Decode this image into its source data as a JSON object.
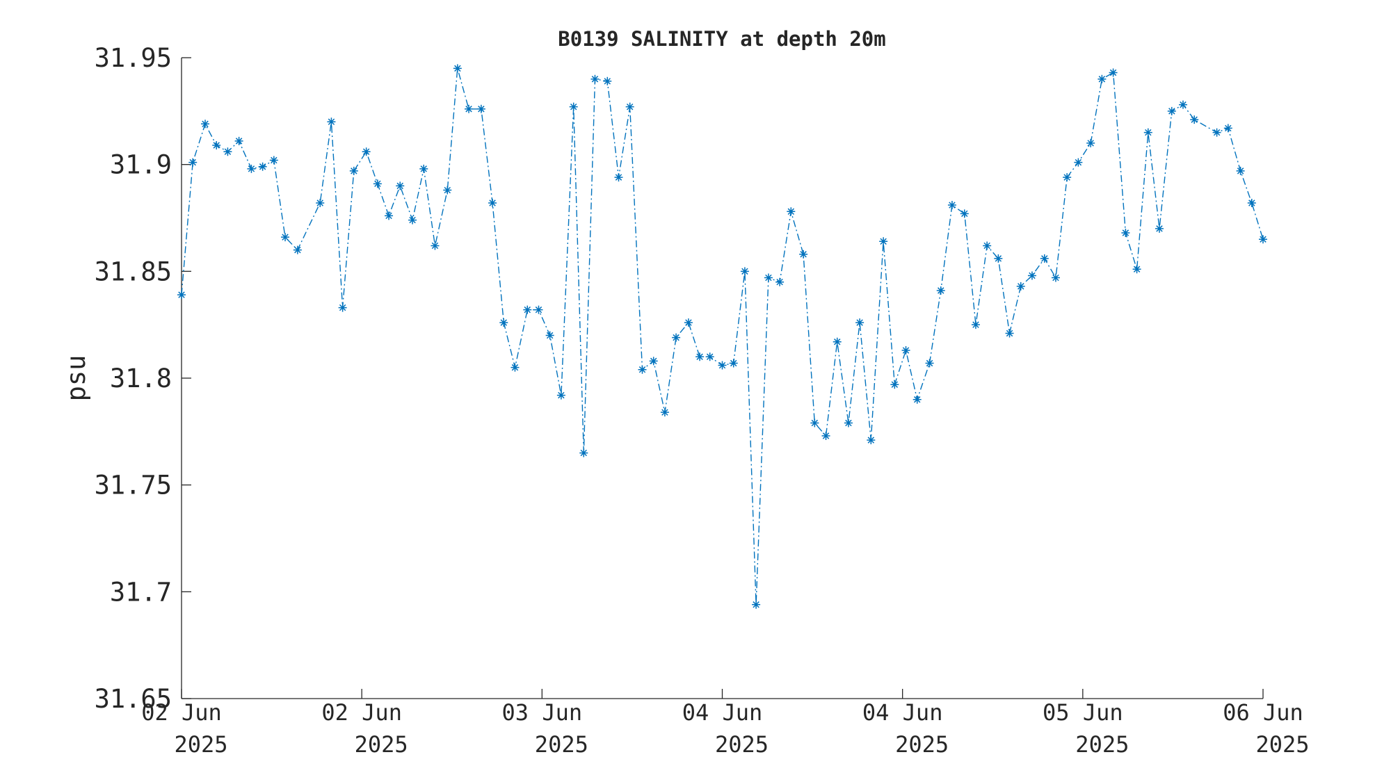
{
  "chart_data": {
    "type": "line",
    "title": "B0139 SALINITY at depth 20m",
    "ylabel": "psu",
    "x": [
      0,
      1.0,
      2.1,
      3.1,
      4.1,
      5.1,
      6.2,
      7.2,
      8.2,
      9.2,
      10.3,
      12.3,
      13.3,
      14.3,
      15.3,
      16.4,
      17.4,
      18.4,
      19.4,
      20.5,
      21.5,
      22.5,
      23.6,
      24.5,
      25.5,
      26.6,
      27.6,
      28.6,
      29.6,
      30.7,
      31.7,
      32.7,
      33.7,
      34.8,
      35.7,
      36.7,
      37.8,
      38.8,
      39.8,
      40.9,
      41.9,
      42.9,
      43.9,
      45.0,
      46.0,
      46.9,
      48.0,
      49.0,
      50.0,
      51.0,
      52.1,
      53.1,
      54.1,
      55.2,
      56.2,
      57.2,
      58.2,
      59.2,
      60.2,
      61.2,
      62.3,
      63.3,
      64.3,
      65.3,
      66.4,
      67.4,
      68.4,
      69.5,
      70.5,
      71.5,
      72.5,
      73.5,
      74.5,
      75.5,
      76.6,
      77.6,
      78.6,
      79.6,
      80.7,
      81.7,
      82.7,
      83.8,
      84.8,
      85.8,
      86.8,
      87.9,
      88.9,
      89.9,
      91.9,
      92.9,
      94.0,
      95.0,
      96.0
    ],
    "series": [
      {
        "name": "B0139",
        "color": "#0072bd",
        "values": [
          31.839,
          31.901,
          31.919,
          31.909,
          31.906,
          31.911,
          31.898,
          31.899,
          31.902,
          31.866,
          31.86,
          31.882,
          31.92,
          31.833,
          31.897,
          31.906,
          31.891,
          31.876,
          31.89,
          31.874,
          31.898,
          31.862,
          31.888,
          31.945,
          31.926,
          31.926,
          31.882,
          31.826,
          31.805,
          31.832,
          31.832,
          31.82,
          31.792,
          31.927,
          31.765,
          31.94,
          31.939,
          31.894,
          31.927,
          31.804,
          31.808,
          31.784,
          31.819,
          31.826,
          31.81,
          31.81,
          31.806,
          31.807,
          31.85,
          31.694,
          31.847,
          31.845,
          31.878,
          31.858,
          31.779,
          31.773,
          31.817,
          31.779,
          31.826,
          31.771,
          31.864,
          31.797,
          31.813,
          31.79,
          31.807,
          31.841,
          31.881,
          31.877,
          31.825,
          31.862,
          31.856,
          31.821,
          31.843,
          31.848,
          31.856,
          31.847,
          31.894,
          31.901,
          31.91,
          31.94,
          31.943,
          31.868,
          31.851,
          31.915,
          31.87,
          31.925,
          31.928,
          31.921,
          31.915,
          31.917,
          31.897,
          31.882,
          31.865
        ]
      }
    ],
    "xlim": [
      0,
      96
    ],
    "xticks": [
      {
        "value": 0,
        "label": "02 Jun\n2025"
      },
      {
        "value": 16,
        "label": "02 Jun\n2025"
      },
      {
        "value": 32,
        "label": "03 Jun\n2025"
      },
      {
        "value": 48,
        "label": "04 Jun\n2025"
      },
      {
        "value": 64,
        "label": "04 Jun\n2025"
      },
      {
        "value": 80,
        "label": "05 Jun\n2025"
      },
      {
        "value": 96,
        "label": "06 Jun\n2025"
      }
    ],
    "ylim": [
      31.65,
      31.95
    ],
    "yticks": [
      31.65,
      31.7,
      31.75,
      {
        "value": 31.8,
        "label": "31.8"
      },
      31.85,
      {
        "value": 31.9,
        "label": "31.9"
      },
      31.95
    ],
    "grid": false
  }
}
